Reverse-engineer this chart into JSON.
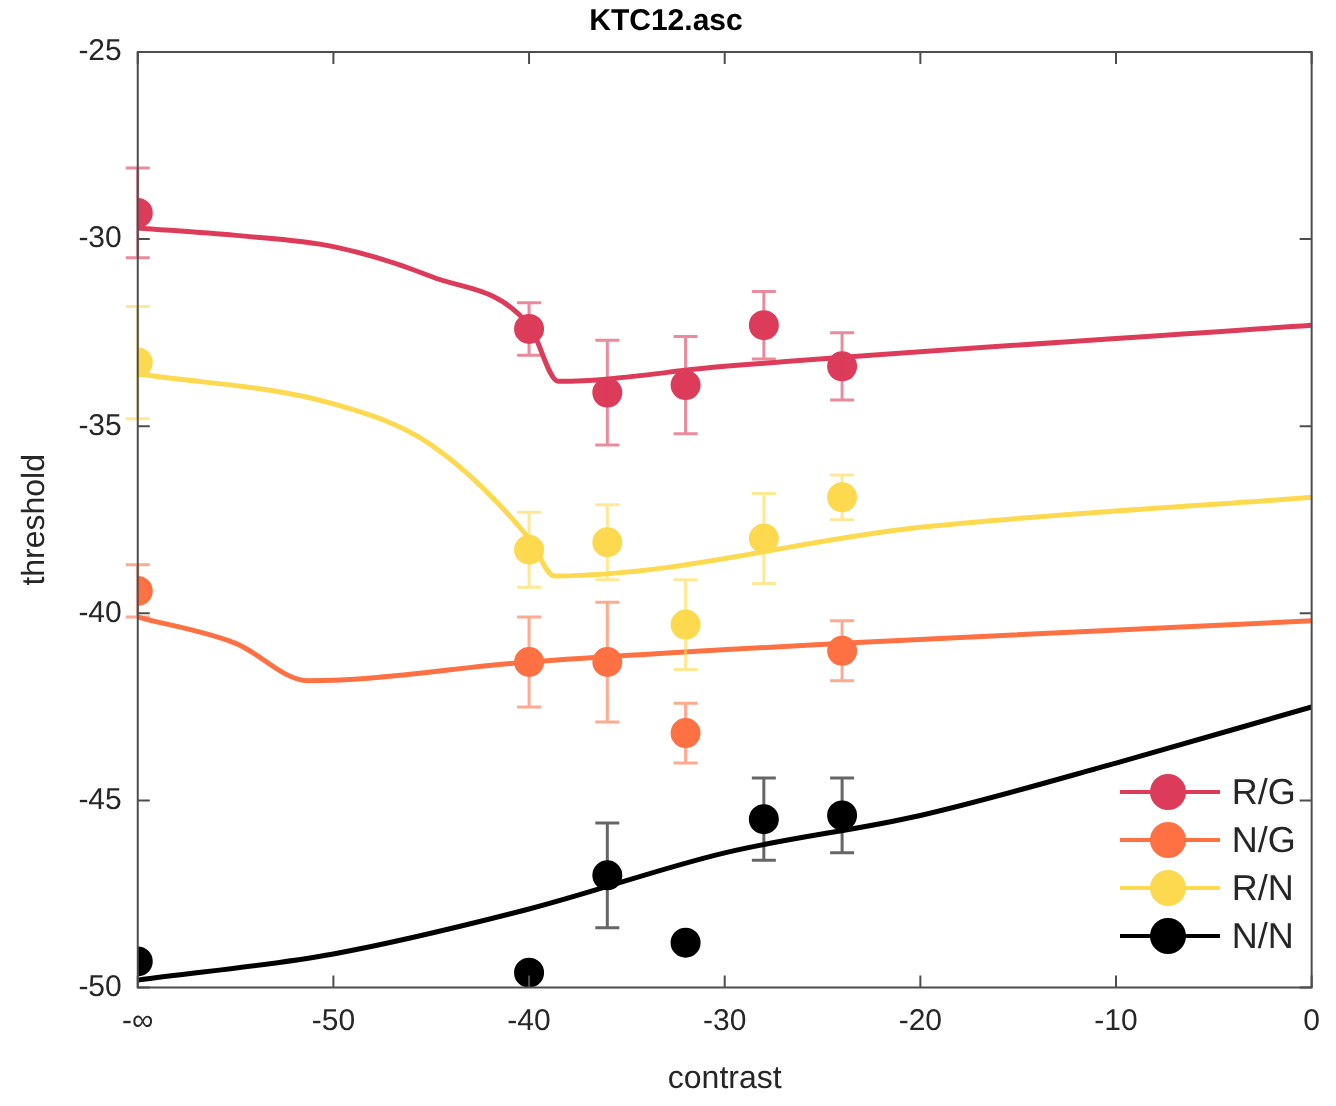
{
  "chart_data": {
    "type": "scatter",
    "title": "KTC12.asc",
    "xlabel": "contrast",
    "ylabel": "threshold",
    "xlim": [
      -60,
      0
    ],
    "xticks": [
      {
        "value": -60,
        "label": "-∞"
      },
      -50,
      -40,
      -30,
      -20,
      -10,
      0
    ],
    "ylim": [
      -50,
      -25
    ],
    "yticks": [
      -50,
      -45,
      -40,
      -35,
      -30,
      -25
    ],
    "marker": "circle",
    "line_style": "solid",
    "legend": "bottom right",
    "series": [
      {
        "type": "line",
        "marker": "none",
        "color": "#dc3c5a",
        "x": [
          -60,
          -55,
          -50,
          -45,
          -40,
          -38.5,
          -30,
          0
        ],
        "values": [
          -29.7,
          -29.9,
          -30.2,
          -31.0,
          -32.3,
          -33.8,
          -33.4,
          -32.3
        ]
      },
      {
        "type": "line",
        "marker": "none",
        "color": "#ff7043",
        "x": [
          -60,
          -55,
          -51.3,
          -40,
          -24,
          0
        ],
        "values": [
          -40.1,
          -40.8,
          -41.8,
          -41.3,
          -40.8,
          -40.2
        ]
      },
      {
        "type": "line",
        "marker": "none",
        "color": "#fdd94f",
        "x": [
          -60,
          -50,
          -45,
          -40,
          -38.7,
          -20,
          0
        ],
        "values": [
          -33.6,
          -34.4,
          -35.5,
          -38.0,
          -39.0,
          -37.7,
          -36.9
        ]
      },
      {
        "type": "line",
        "marker": "none",
        "color": "#000000",
        "x": [
          -60,
          -50,
          -40,
          -30,
          -20,
          -10,
          0
        ],
        "values": [
          -49.8,
          -49.1,
          -47.9,
          -46.4,
          -45.4,
          -44.0,
          -42.5
        ]
      },
      {
        "name": "R/G",
        "color": "#dc3c5a",
        "x": [
          -60,
          -40,
          -36,
          -32,
          -28,
          -24
        ],
        "values": [
          -29.3,
          -32.4,
          -34.1,
          -33.9,
          -32.3,
          -33.4
        ],
        "errors": [
          1.2,
          0.7,
          1.4,
          1.3,
          0.9,
          0.9
        ]
      },
      {
        "name": "N/G",
        "color": "#ff7043",
        "x": [
          -60,
          -40,
          -36,
          -32,
          -24
        ],
        "values": [
          -39.4,
          -41.3,
          -41.3,
          -43.2,
          -41.0
        ],
        "errors": [
          0.7,
          1.2,
          1.6,
          0.8,
          0.8
        ]
      },
      {
        "name": "R/N",
        "color": "#fdd94f",
        "x": [
          -60,
          -40,
          -36,
          -32,
          -28,
          -24
        ],
        "values": [
          -33.3,
          -38.3,
          -38.1,
          -40.3,
          -38.0,
          -36.9
        ],
        "errors": [
          1.5,
          1.0,
          1.0,
          1.2,
          1.2,
          0.6
        ]
      },
      {
        "name": "N/N",
        "color": "#000000",
        "x": [
          -60,
          -40,
          -36,
          -32,
          -28,
          -24
        ],
        "values": [
          -49.3,
          -49.6,
          -47.0,
          -48.8,
          -45.5,
          -45.4
        ],
        "errors": [
          null,
          null,
          1.4,
          null,
          1.1,
          1.0
        ]
      }
    ]
  }
}
